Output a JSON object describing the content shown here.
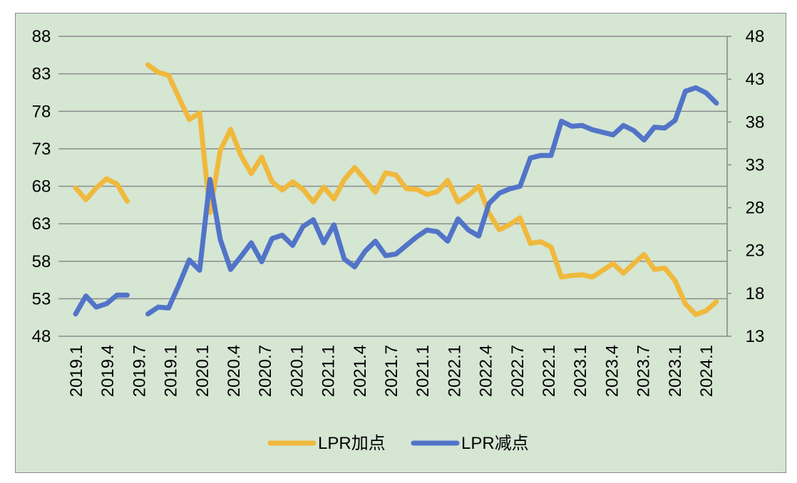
{
  "chart_data": {
    "type": "line",
    "x": [
      "2019.1",
      "2019.2",
      "2019.3",
      "2019.4",
      "2019.5",
      "2019.6",
      "2019.7",
      "2019.8",
      "2019.9",
      "2019.10",
      "2019.11",
      "2019.12",
      "2020.1",
      "2020.2",
      "2020.3",
      "2020.4",
      "2020.5",
      "2020.6",
      "2020.7",
      "2020.8",
      "2020.9",
      "2020.10",
      "2020.11",
      "2020.12",
      "2021.1",
      "2021.2",
      "2021.3",
      "2021.4",
      "2021.5",
      "2021.6",
      "2021.7",
      "2021.8",
      "2021.9",
      "2021.10",
      "2021.11",
      "2021.12",
      "2022.1",
      "2022.2",
      "2022.3",
      "2022.4",
      "2022.5",
      "2022.6",
      "2022.7",
      "2022.8",
      "2022.9",
      "2022.10",
      "2022.11",
      "2022.12",
      "2023.1",
      "2023.2",
      "2023.3",
      "2023.4",
      "2023.5",
      "2023.6",
      "2023.7",
      "2023.8",
      "2023.9",
      "2023.10",
      "2023.11",
      "2023.12",
      "2024.1",
      "2024.2",
      "2024.3"
    ],
    "x_tick_labels": [
      "2019.1",
      "2019.4",
      "2019.7",
      "2019.1",
      "2020.1",
      "2020.4",
      "2020.7",
      "2020.1",
      "2021.1",
      "2021.4",
      "2021.7",
      "2021.1",
      "2022.1",
      "2022.4",
      "2022.7",
      "2022.1",
      "2023.1",
      "2023.4",
      "2023.7",
      "2023.1",
      "2024.1"
    ],
    "series": [
      {
        "name": "LPR加点",
        "color": "#f0b93d",
        "axis": "left",
        "values": [
          67.8,
          66.2,
          67.8,
          69.0,
          68.3,
          66.0,
          null,
          84.2,
          83.2,
          82.8,
          79.8,
          76.9,
          77.8,
          64.5,
          72.8,
          75.6,
          72.1,
          69.7,
          71.9,
          68.6,
          67.5,
          68.6,
          67.6,
          65.9,
          67.9,
          66.3,
          68.9,
          70.5,
          68.9,
          67.2,
          69.8,
          69.5,
          67.7,
          67.6,
          66.9,
          67.3,
          68.8,
          65.9,
          66.8,
          68.0,
          64.4,
          62.2,
          62.9,
          63.8,
          60.4,
          60.6,
          59.9,
          55.9,
          56.1,
          56.2,
          55.9,
          56.8,
          57.7,
          56.4,
          57.7,
          58.9,
          56.9,
          57.1,
          55.4,
          52.3,
          50.9,
          51.4,
          52.6
        ]
      },
      {
        "name": "LPR减点",
        "color": "#5274c8",
        "axis": "right",
        "values": [
          15.6,
          17.7,
          16.4,
          16.8,
          17.8,
          17.8,
          null,
          15.6,
          16.4,
          16.3,
          19.0,
          21.9,
          20.7,
          31.3,
          24.3,
          20.8,
          22.3,
          23.9,
          21.7,
          24.4,
          24.8,
          23.6,
          25.8,
          26.6,
          23.9,
          26.0,
          22.0,
          21.1,
          22.9,
          24.1,
          22.4,
          22.6,
          23.6,
          24.6,
          25.4,
          25.2,
          24.1,
          26.7,
          25.4,
          24.7,
          28.5,
          29.7,
          30.2,
          30.5,
          33.8,
          34.1,
          34.1,
          38.1,
          37.5,
          37.6,
          37.1,
          36.8,
          36.5,
          37.6,
          37.0,
          35.9,
          37.4,
          37.3,
          38.2,
          41.6,
          42.0,
          41.4,
          40.2
        ]
      }
    ],
    "y_left": {
      "ticks": [
        "88",
        "83",
        "78",
        "73",
        "68",
        "63",
        "58",
        "53",
        "48"
      ],
      "min": 48,
      "max": 88
    },
    "y_right": {
      "ticks": [
        "48",
        "43",
        "38",
        "33",
        "28",
        "23",
        "18",
        "13"
      ],
      "min": 13,
      "max": 48
    },
    "legend": {
      "placement": "bottom",
      "items": [
        "LPR加点",
        "LPR减点"
      ]
    },
    "grid": "horizontal"
  }
}
